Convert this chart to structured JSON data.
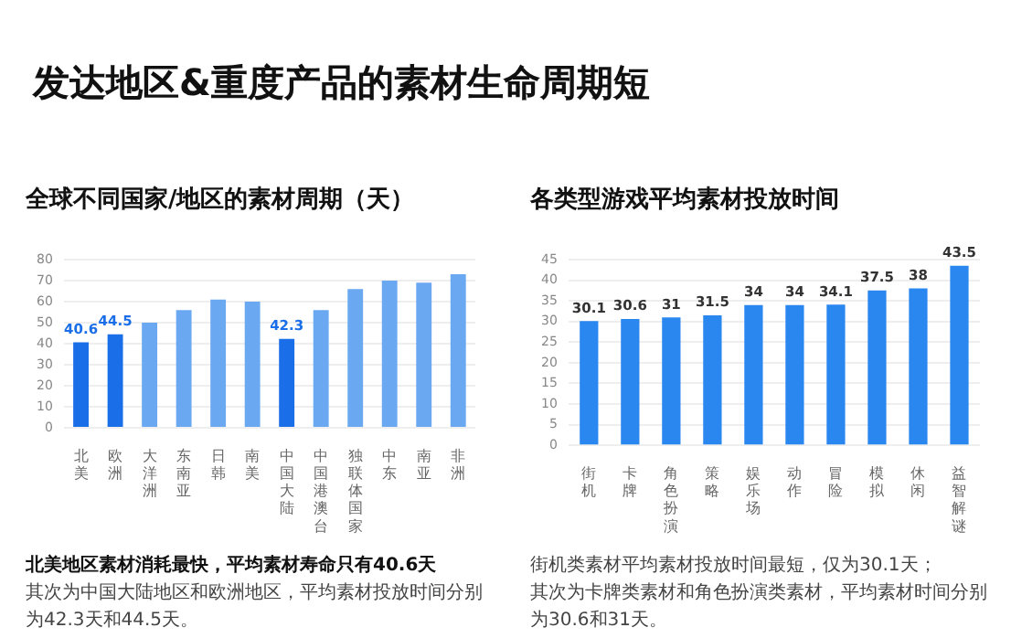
{
  "chart_data": [
    {
      "type": "other",
      "title": "发达地区&重度产品的素材生命周期短"
    },
    {
      "type": "bar",
      "title": "全球不同国家/地区的素材周期（天）",
      "categories": [
        "北美",
        "欧洲",
        "大洋洲",
        "东南亚",
        "日韩",
        "南美",
        "中国大陆",
        "中国港澳台",
        "独联体国家",
        "中东",
        "南亚",
        "非洲"
      ],
      "values": [
        40.6,
        44.5,
        50,
        56,
        61,
        60,
        42.3,
        56,
        66,
        70,
        69,
        73
      ],
      "colors": [
        "#1a6ee8",
        "#1a6ee8",
        "#6aa9f1",
        "#6aa9f1",
        "#6aa9f1",
        "#6aa9f1",
        "#1a6ee8",
        "#6aa9f1",
        "#6aa9f1",
        "#6aa9f1",
        "#6aa9f1",
        "#6aa9f1"
      ],
      "value_labels": [
        "40.6",
        "44.5",
        null,
        null,
        null,
        null,
        "42.3",
        null,
        null,
        null,
        null,
        null
      ],
      "ylim": [
        0,
        80
      ],
      "yticks": [
        0,
        10,
        20,
        30,
        40,
        50,
        60,
        70,
        80
      ],
      "grid": "y",
      "annotations": [
        "北美地区素材消耗最快，平均素材寿命只有40.6天",
        "其次为中国大陆地区和欧洲地区，平均素材投放时间分别为42.3天和44.5天。"
      ]
    },
    {
      "type": "bar",
      "title": "各类型游戏平均素材投放时间",
      "categories": [
        "街机",
        "卡牌",
        "角色扮演",
        "策略",
        "娱乐场",
        "动作",
        "冒险",
        "模拟",
        "休闲",
        "益智解谜"
      ],
      "values": [
        30.1,
        30.6,
        31,
        31.5,
        34,
        34,
        34.1,
        37.5,
        38,
        43.5
      ],
      "color": "#2b87f0",
      "data_labels": true,
      "ylim": [
        0,
        45
      ],
      "yticks": [
        0,
        5,
        10,
        15,
        20,
        25,
        30,
        35,
        40,
        45
      ],
      "grid": "y",
      "annotations": [
        "街机类素材平均素材投放时间最短，仅为30.1天；",
        "其次为卡牌类素材和角色扮演类素材，平均素材时间分别为30.6和31天。"
      ]
    }
  ]
}
